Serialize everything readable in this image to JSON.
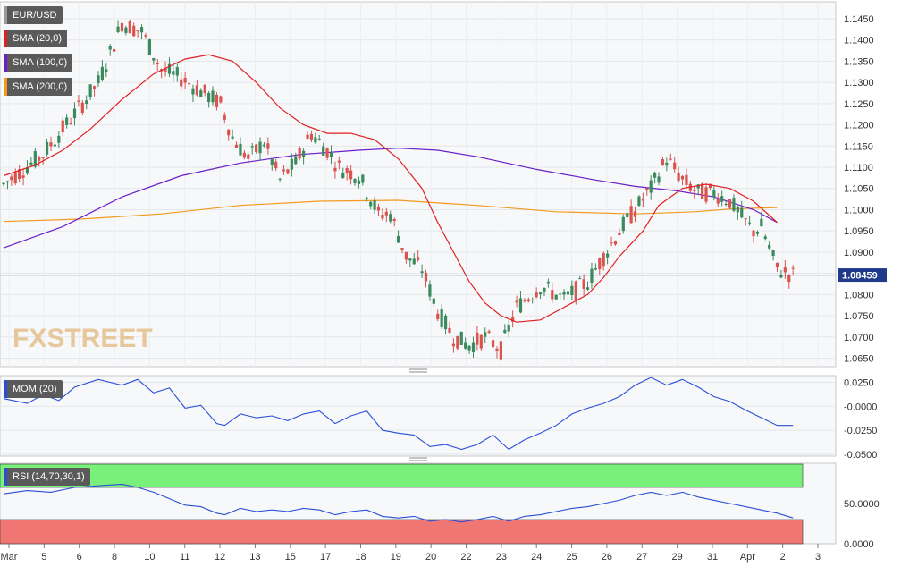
{
  "chart_data": [
    {
      "type": "candlestick",
      "symbol": "EUR/USD",
      "legend": [
        {
          "label": "EUR/USD",
          "color": "#5a5a5a"
        },
        {
          "label": "SMA (20,0)",
          "color": "#e02020"
        },
        {
          "label": "SMA (100,0)",
          "color": "#6a1fc9"
        },
        {
          "label": "SMA (200,0)",
          "color": "#f39a1e"
        }
      ],
      "y_ticks": [
        "1.1450",
        "1.1400",
        "1.1350",
        "1.1300",
        "1.1250",
        "1.1200",
        "1.1150",
        "1.1100",
        "1.1050",
        "1.1000",
        "1.0950",
        "1.0900",
        "1.0850",
        "1.0800",
        "1.0750",
        "1.0700",
        "1.0650"
      ],
      "ylim": [
        1.063,
        1.149
      ],
      "last_price": "1.08459",
      "last_price_value": 1.08459,
      "colors": {
        "up": "#3a8a5e",
        "down": "#d9534f",
        "sma20": "#e02020",
        "sma100": "#6a1fc9",
        "sma200": "#f39a1e",
        "last_line": "#1f3a8a"
      },
      "x_ticks": [
        "Mar",
        "5",
        "6",
        "8",
        "10",
        "11",
        "12",
        "13",
        "15",
        "17",
        "18",
        "19",
        "20",
        "22",
        "23",
        "24",
        "25",
        "26",
        "27",
        "29",
        "31",
        "Apr",
        "2",
        "3"
      ],
      "watermark": "FXSTREET",
      "n_bars": 203,
      "sma20": [
        [
          0,
          1.108
        ],
        [
          8,
          1.1105
        ],
        [
          15,
          1.114
        ],
        [
          22,
          1.119
        ],
        [
          30,
          1.126
        ],
        [
          38,
          1.132
        ],
        [
          46,
          1.1355
        ],
        [
          52,
          1.1365
        ],
        [
          58,
          1.135
        ],
        [
          64,
          1.13
        ],
        [
          70,
          1.124
        ],
        [
          76,
          1.12
        ],
        [
          82,
          1.118
        ],
        [
          88,
          1.118
        ],
        [
          94,
          1.1165
        ],
        [
          100,
          1.112
        ],
        [
          106,
          1.105
        ],
        [
          110,
          1.097
        ],
        [
          114,
          1.09
        ],
        [
          118,
          1.083
        ],
        [
          122,
          1.078
        ],
        [
          126,
          1.075
        ],
        [
          130,
          1.0735
        ],
        [
          136,
          1.074
        ],
        [
          142,
          1.077
        ],
        [
          148,
          1.08
        ],
        [
          152,
          1.084
        ],
        [
          156,
          1.089
        ],
        [
          162,
          1.095
        ],
        [
          166,
          1.101
        ],
        [
          172,
          1.105
        ],
        [
          178,
          1.106
        ],
        [
          184,
          1.105
        ],
        [
          190,
          1.102
        ],
        [
          196,
          1.097
        ]
      ],
      "sma100": [
        [
          0,
          1.091
        ],
        [
          15,
          1.096
        ],
        [
          30,
          1.103
        ],
        [
          45,
          1.108
        ],
        [
          60,
          1.111
        ],
        [
          75,
          1.113
        ],
        [
          90,
          1.114
        ],
        [
          100,
          1.1145
        ],
        [
          110,
          1.114
        ],
        [
          120,
          1.1125
        ],
        [
          135,
          1.1095
        ],
        [
          150,
          1.107
        ],
        [
          160,
          1.1055
        ],
        [
          170,
          1.1045
        ],
        [
          180,
          1.103
        ],
        [
          190,
          1.1
        ],
        [
          196,
          1.097
        ]
      ],
      "sma200": [
        [
          0,
          1.0972
        ],
        [
          20,
          1.0978
        ],
        [
          40,
          1.099
        ],
        [
          60,
          1.101
        ],
        [
          80,
          1.102
        ],
        [
          100,
          1.1022
        ],
        [
          120,
          1.101
        ],
        [
          140,
          1.0995
        ],
        [
          160,
          1.099
        ],
        [
          175,
          1.0995
        ],
        [
          185,
          1.1002
        ],
        [
          196,
          1.1005
        ]
      ],
      "price_path": [
        [
          0,
          1.106
        ],
        [
          10,
          1.113
        ],
        [
          20,
          1.125
        ],
        [
          24,
          1.13
        ],
        [
          30,
          1.144
        ],
        [
          35,
          1.142
        ],
        [
          40,
          1.133
        ],
        [
          45,
          1.131
        ],
        [
          50,
          1.128
        ],
        [
          55,
          1.125
        ],
        [
          58,
          1.117
        ],
        [
          62,
          1.112
        ],
        [
          66,
          1.116
        ],
        [
          70,
          1.107
        ],
        [
          74,
          1.111
        ],
        [
          78,
          1.118
        ],
        [
          82,
          1.114
        ],
        [
          85,
          1.11
        ],
        [
          90,
          1.108
        ],
        [
          95,
          1.099
        ],
        [
          98,
          1.099
        ],
        [
          102,
          1.089
        ],
        [
          106,
          1.086
        ],
        [
          110,
          1.076
        ],
        [
          114,
          1.07
        ],
        [
          118,
          1.068
        ],
        [
          122,
          1.07
        ],
        [
          126,
          1.067
        ],
        [
          130,
          1.077
        ],
        [
          136,
          1.082
        ],
        [
          142,
          1.079
        ],
        [
          148,
          1.083
        ],
        [
          152,
          1.089
        ],
        [
          156,
          1.095
        ],
        [
          160,
          1.1
        ],
        [
          164,
          1.105
        ],
        [
          168,
          1.112
        ],
        [
          172,
          1.107
        ],
        [
          176,
          1.104
        ],
        [
          180,
          1.104
        ],
        [
          184,
          1.102
        ],
        [
          188,
          1.097
        ],
        [
          190,
          1.095
        ],
        [
          192,
          1.096
        ],
        [
          196,
          1.086
        ],
        [
          200,
          1.0846
        ]
      ]
    },
    {
      "type": "line",
      "series_label": "MOM (20)",
      "y_ticks": [
        "0.0250",
        "-0.0000",
        "-0.0250",
        "-0.0500"
      ],
      "ylim": [
        -0.052,
        0.032
      ],
      "color": "#2a4fd6",
      "values": [
        [
          0,
          0.008
        ],
        [
          6,
          0.003
        ],
        [
          10,
          0.012
        ],
        [
          14,
          0.006
        ],
        [
          18,
          0.02
        ],
        [
          24,
          0.028
        ],
        [
          30,
          0.022
        ],
        [
          34,
          0.028
        ],
        [
          38,
          0.014
        ],
        [
          42,
          0.019
        ],
        [
          46,
          -0.002
        ],
        [
          50,
          0.001
        ],
        [
          54,
          -0.018
        ],
        [
          56,
          -0.02
        ],
        [
          60,
          -0.008
        ],
        [
          64,
          -0.012
        ],
        [
          68,
          -0.01
        ],
        [
          72,
          -0.015
        ],
        [
          76,
          -0.008
        ],
        [
          80,
          -0.005
        ],
        [
          84,
          -0.018
        ],
        [
          88,
          -0.01
        ],
        [
          92,
          -0.005
        ],
        [
          96,
          -0.025
        ],
        [
          100,
          -0.028
        ],
        [
          104,
          -0.03
        ],
        [
          108,
          -0.042
        ],
        [
          112,
          -0.04
        ],
        [
          116,
          -0.045
        ],
        [
          120,
          -0.04
        ],
        [
          124,
          -0.03
        ],
        [
          128,
          -0.045
        ],
        [
          132,
          -0.035
        ],
        [
          136,
          -0.028
        ],
        [
          140,
          -0.02
        ],
        [
          144,
          -0.008
        ],
        [
          148,
          -0.002
        ],
        [
          152,
          0.003
        ],
        [
          156,
          0.01
        ],
        [
          160,
          0.022
        ],
        [
          164,
          0.03
        ],
        [
          168,
          0.022
        ],
        [
          172,
          0.028
        ],
        [
          176,
          0.02
        ],
        [
          180,
          0.01
        ],
        [
          184,
          0.005
        ],
        [
          188,
          -0.004
        ],
        [
          192,
          -0.012
        ],
        [
          196,
          -0.02
        ],
        [
          200,
          -0.02
        ]
      ]
    },
    {
      "type": "line",
      "series_label": "RSI (14,70,30,1)",
      "y_ticks": [
        "50.0000",
        "0.0000"
      ],
      "ylim": [
        0,
        100
      ],
      "upper_band": 70,
      "lower_band": 30,
      "color": "#2a4fd6",
      "band_colors": {
        "upper": "#78f07a",
        "lower": "#f07674"
      },
      "values": [
        [
          0,
          62
        ],
        [
          6,
          66
        ],
        [
          12,
          64
        ],
        [
          18,
          70
        ],
        [
          24,
          72
        ],
        [
          30,
          74
        ],
        [
          34,
          70
        ],
        [
          38,
          64
        ],
        [
          42,
          56
        ],
        [
          46,
          48
        ],
        [
          50,
          46
        ],
        [
          54,
          38
        ],
        [
          56,
          36
        ],
        [
          60,
          44
        ],
        [
          64,
          40
        ],
        [
          68,
          42
        ],
        [
          72,
          40
        ],
        [
          76,
          44
        ],
        [
          80,
          42
        ],
        [
          84,
          36
        ],
        [
          88,
          40
        ],
        [
          92,
          42
        ],
        [
          96,
          34
        ],
        [
          100,
          32
        ],
        [
          104,
          34
        ],
        [
          108,
          28
        ],
        [
          112,
          30
        ],
        [
          116,
          27
        ],
        [
          120,
          30
        ],
        [
          124,
          34
        ],
        [
          128,
          28
        ],
        [
          132,
          34
        ],
        [
          136,
          36
        ],
        [
          140,
          40
        ],
        [
          144,
          44
        ],
        [
          148,
          46
        ],
        [
          152,
          50
        ],
        [
          156,
          54
        ],
        [
          160,
          60
        ],
        [
          164,
          64
        ],
        [
          168,
          60
        ],
        [
          172,
          64
        ],
        [
          176,
          58
        ],
        [
          180,
          54
        ],
        [
          184,
          50
        ],
        [
          188,
          46
        ],
        [
          192,
          42
        ],
        [
          196,
          38
        ],
        [
          200,
          32
        ]
      ]
    }
  ]
}
